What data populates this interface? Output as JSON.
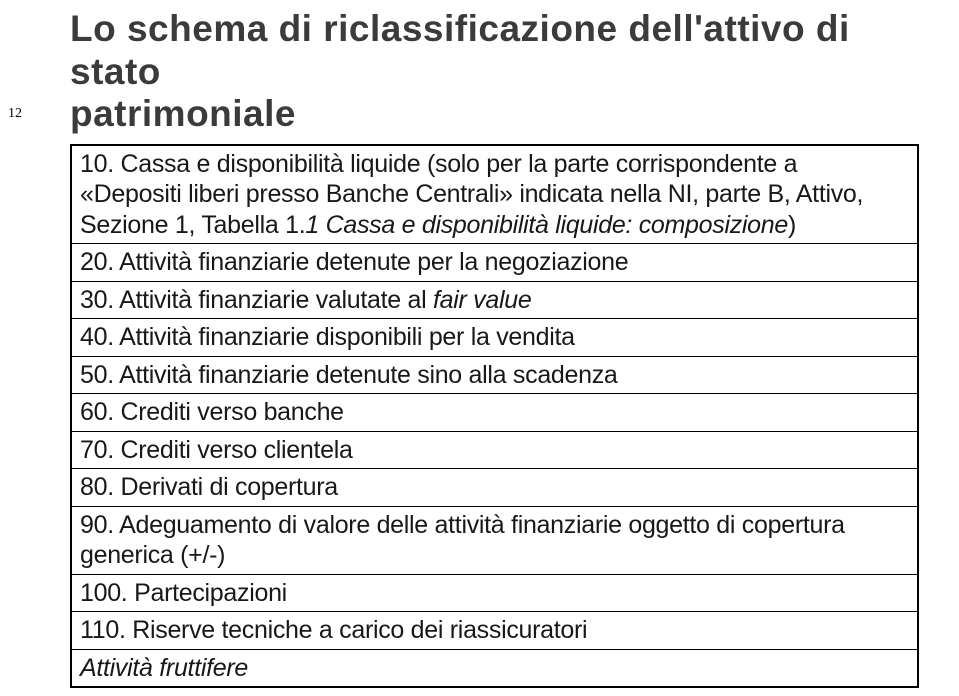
{
  "page_number": "12",
  "title_line1": "Lo schema di riclassificazione dell'attivo di stato",
  "title_line2": "patrimoniale",
  "rows": {
    "r0a": "10. Cassa e disponibilità liquide (solo per la parte corrispondente a",
    "r0b": "«Depositi liberi presso Banche Centrali» indicata nella NI, parte B, Attivo,",
    "r0c_prefix": "Sezione 1, Tabella 1.",
    "r0c_italic": "1 Cassa e disponibilità liquide: composizione",
    "r0c_suffix": ")",
    "r1": "20. Attività finanziarie detenute per la negoziazione",
    "r2_prefix": "30. Attività finanziarie valutate al ",
    "r2_italic": "fair value",
    "r3": "40. Attività finanziarie disponibili per la vendita",
    "r4": "50. Attività finanziarie detenute sino alla scadenza",
    "r5": "60. Crediti verso banche",
    "r6": "70. Crediti verso clientela",
    "r7": "80. Derivati di copertura",
    "r8a": "90. Adeguamento di valore delle attività finanziarie oggetto di copertura",
    "r8b": "generica (+/-)",
    "r9": "100. Partecipazioni",
    "r10": "110. Riserve tecniche a carico dei riassicuratori",
    "r11": "Attività fruttifere"
  },
  "colors": {
    "title": "#3b3b3b",
    "body": "#181818",
    "blue": "#0000d0",
    "border": "#000000",
    "background": "#ffffff"
  }
}
